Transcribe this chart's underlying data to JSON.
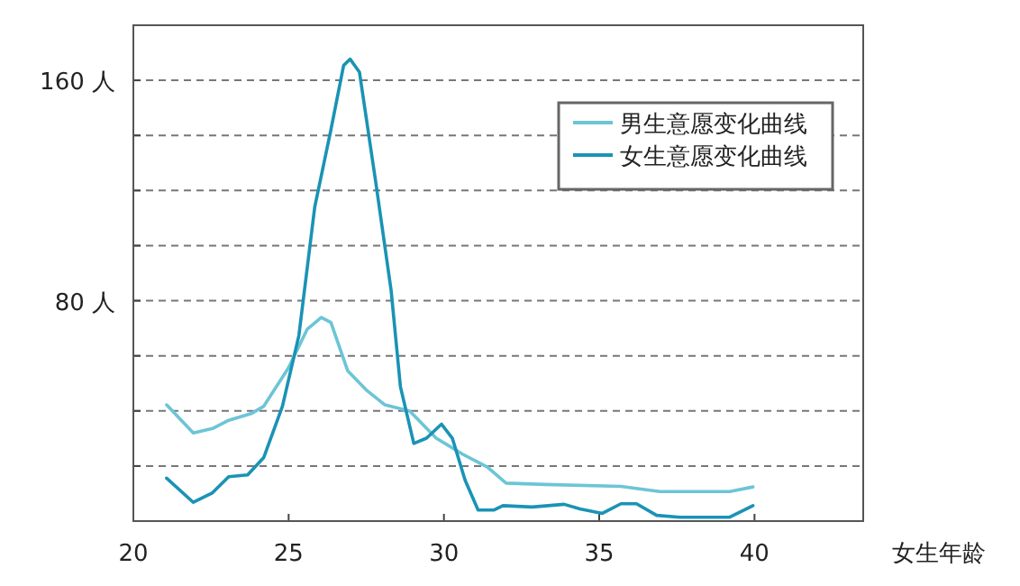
{
  "chart_data": {
    "type": "line",
    "xlabel": "女生年龄",
    "xlim": [
      20,
      43.5
    ],
    "xticks": [
      20,
      25,
      30,
      35,
      40
    ],
    "ylim": [
      0,
      180
    ],
    "yticks": [
      {
        "value": 20,
        "label": null
      },
      {
        "value": 40,
        "label": null
      },
      {
        "value": 60,
        "label": null
      },
      {
        "value": 80,
        "label": "80 人"
      },
      {
        "value": 100,
        "label": null
      },
      {
        "value": 120,
        "label": null
      },
      {
        "value": 140,
        "label": null
      },
      {
        "value": 160,
        "label": "160 人"
      }
    ],
    "grid": "y",
    "legend": "top right",
    "series": [
      {
        "name": "男生意愿变化曲线",
        "color": "#6cc5d6",
        "x": [
          21.07,
          21.93,
          22.55,
          23.07,
          23.79,
          24.2,
          25.0,
          25.6,
          26.05,
          26.36,
          26.9,
          27.5,
          28.1,
          28.9,
          29.75,
          30.6,
          31.4,
          32.0,
          33.25,
          35.7,
          36.95,
          39.2,
          39.95
        ],
        "values": [
          42.2,
          32,
          33.6,
          36.6,
          39,
          41.7,
          55.7,
          69.7,
          73.9,
          72.1,
          54.6,
          47.6,
          42.2,
          39.9,
          30.1,
          24.3,
          19.6,
          13.8,
          13.3,
          12.6,
          10.7,
          10.7,
          12.4
        ]
      },
      {
        "name": "女生意愿变化曲线",
        "color": "#1a93b5",
        "x": [
          21.07,
          21.93,
          22.55,
          23.07,
          23.68,
          24.2,
          24.8,
          25.33,
          25.84,
          26.36,
          26.77,
          26.98,
          27.28,
          27.8,
          28.3,
          28.6,
          29.03,
          29.44,
          29.92,
          30.27,
          30.68,
          31.1,
          31.6,
          31.9,
          32.84,
          33.87,
          34.38,
          35.1,
          35.7,
          36.2,
          36.85,
          37.6,
          39.2,
          39.95
        ],
        "values": [
          15.6,
          6.8,
          10.3,
          16.1,
          16.8,
          23.1,
          41.7,
          67.4,
          114,
          142,
          165.4,
          167.7,
          163,
          123.4,
          83.7,
          48.7,
          28.2,
          30.1,
          35.2,
          30.1,
          14.9,
          4,
          4,
          5.6,
          5.1,
          6.1,
          4.4,
          2.8,
          6.3,
          6.3,
          2.1,
          1.4,
          1.4,
          5.6
        ]
      }
    ]
  }
}
